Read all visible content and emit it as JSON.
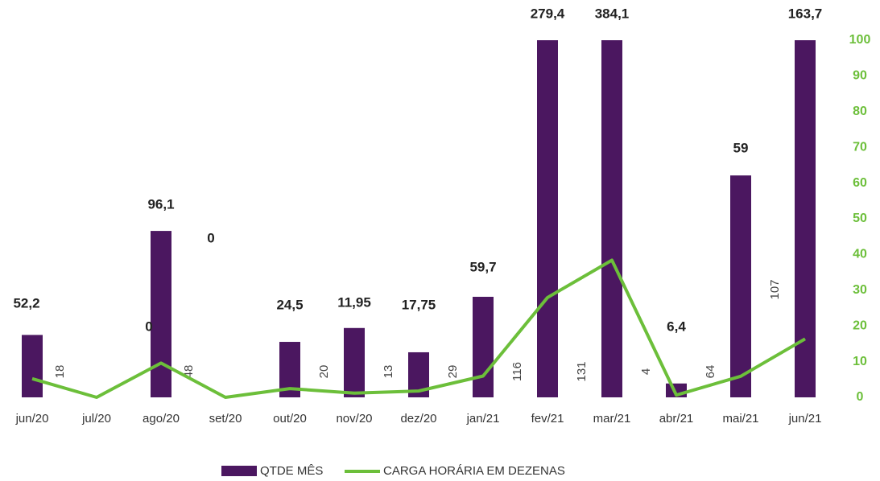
{
  "chart_data": {
    "type": "bar",
    "categories": [
      "jun/20",
      "jul/20",
      "ago/20",
      "set/20",
      "out/20",
      "nov/20",
      "dez/20",
      "jan/21",
      "fev/21",
      "mar/21",
      "abr/21",
      "mai/21",
      "jun/21"
    ],
    "ylim": [
      0,
      103
    ],
    "y2lim": [
      0,
      100
    ],
    "y2ticks": [
      0,
      10,
      20,
      30,
      40,
      50,
      60,
      70,
      80,
      90,
      100
    ],
    "series": [
      {
        "name": "QTDE MÊS",
        "type": "bar",
        "color": "#4b1760",
        "values": [
          18,
          0,
          48,
          0,
          16,
          20,
          13,
          29,
          116,
          131,
          4,
          64,
          107
        ],
        "value_labels": [
          "18",
          null,
          "48",
          null,
          null,
          "20",
          "13",
          "29",
          "116",
          "131",
          "4",
          "64",
          "107"
        ]
      },
      {
        "name": "CARGA HORÁRIA EM DEZENAS",
        "type": "line",
        "axis": "y2",
        "color": "#6cbf3a",
        "values": [
          5.22,
          0,
          9.61,
          0,
          2.45,
          1.195,
          1.775,
          5.97,
          27.94,
          38.41,
          0.64,
          5.9,
          16.37
        ],
        "value_labels": [
          "52,2",
          "0",
          "96,1",
          "0",
          "24,5",
          "11,95",
          "17,75",
          "59,7",
          "279,4",
          "384,1",
          "6,4",
          "59",
          "163,7"
        ]
      }
    ]
  }
}
